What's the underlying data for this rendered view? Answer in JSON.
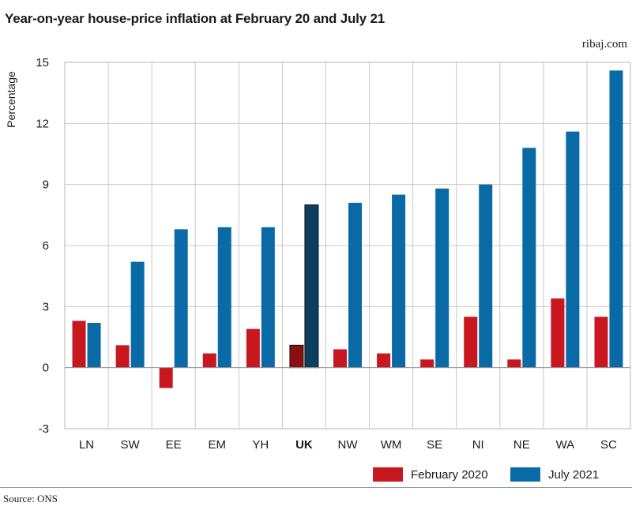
{
  "title": "Year-on-year house-price inflation at February 20 and July 21",
  "brand": "ribaj.com",
  "source": "Source: ONS",
  "colors": {
    "feb": "#c8171f",
    "jul": "#0a6aa6",
    "feb_highlight": "#8b0f12",
    "jul_highlight": "#0c3f5f"
  },
  "chart_data": {
    "type": "bar",
    "ylabel": "Percentage",
    "ylim": [
      -3,
      15
    ],
    "yticks": [
      -3,
      0,
      3,
      6,
      9,
      12,
      15
    ],
    "categories": [
      "LN",
      "SW",
      "EE",
      "EM",
      "YH",
      "UK",
      "NW",
      "WM",
      "SE",
      "NI",
      "NE",
      "WA",
      "SC"
    ],
    "highlight": "UK",
    "series": [
      {
        "name": "February 2020",
        "values": [
          2.3,
          1.1,
          -1.0,
          0.7,
          1.9,
          1.1,
          0.9,
          0.7,
          0.4,
          2.5,
          0.4,
          3.4,
          2.5
        ]
      },
      {
        "name": "July 2021",
        "values": [
          2.2,
          5.2,
          6.8,
          6.9,
          6.9,
          8.0,
          8.1,
          8.5,
          8.8,
          9.0,
          10.8,
          11.6,
          14.6
        ]
      }
    ],
    "grid": true,
    "legend_position": "bottom-right"
  }
}
